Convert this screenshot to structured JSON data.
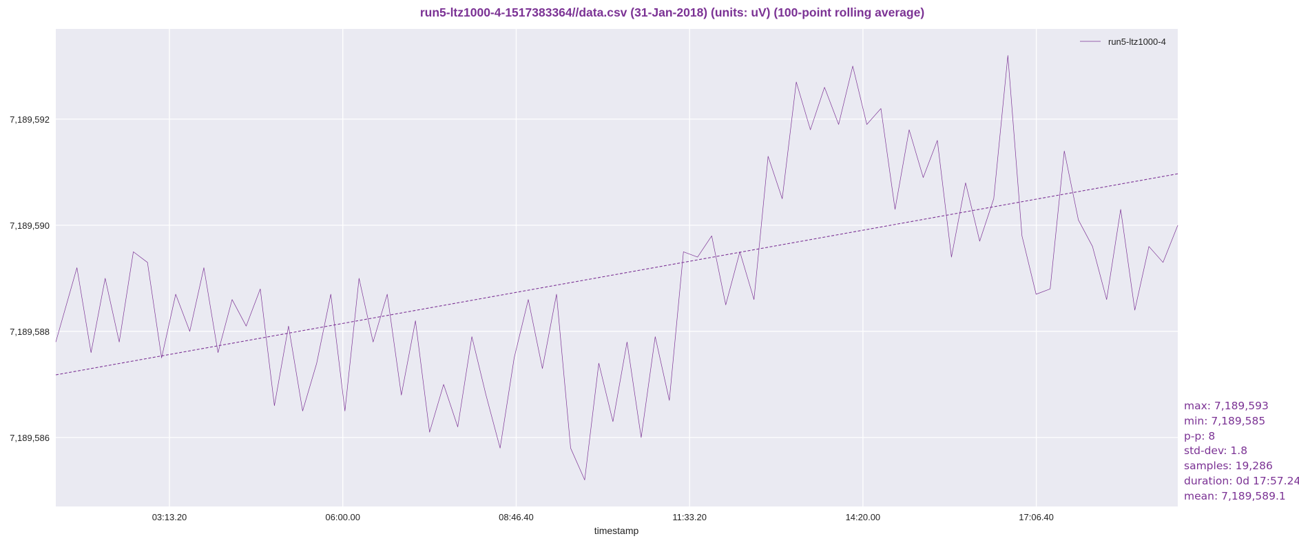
{
  "chart_data": {
    "type": "line",
    "title": "run5-ltz1000-4-1517383364//data.csv (31-Jan-2018) (units: uV) (100-point rolling average)",
    "xlabel": "timestamp",
    "ylabel": "",
    "x_tick_labels": [
      "03:13.20",
      "06:00.00",
      "08:46.40",
      "11:33.20",
      "14:20.00",
      "17:06.40"
    ],
    "x_tick_seconds": [
      11600,
      21600,
      31600,
      41600,
      51600,
      61600
    ],
    "xlim_seconds": [
      5045,
      69760
    ],
    "y_ticks": [
      7189586,
      7189588,
      7189590,
      7189592
    ],
    "ylim": [
      7189584.7,
      7189593.7
    ],
    "grid": true,
    "legend": {
      "placement": "top-right",
      "entries": [
        "run5-ltz1000-4"
      ]
    },
    "colors": {
      "series": "#7b3294",
      "trend": "#7b3294",
      "background": "#eaeaf2",
      "grid": "#ffffff",
      "title": "#7b3294"
    },
    "series": [
      {
        "name": "run5-ltz1000-4",
        "x_seconds": [
          5045,
          6265,
          7078,
          7892,
          8705,
          9519,
          10333,
          11146,
          11960,
          12773,
          13587,
          14400,
          15214,
          16027,
          16841,
          17655,
          18468,
          19282,
          20095,
          20909,
          21722,
          22536,
          23349,
          24163,
          24977,
          25790,
          26604,
          27417,
          28231,
          29044,
          29858,
          30672,
          31485,
          32299,
          33112,
          33926,
          34739,
          35553,
          36366,
          37180,
          37994,
          38807,
          39621,
          40434,
          41248,
          42061,
          42875,
          43689,
          44502,
          45316,
          46129,
          46943,
          47756,
          48570,
          49383,
          50197,
          51011,
          51824,
          52638,
          53451,
          54265,
          55078,
          55892,
          56705,
          57519,
          58333,
          59146,
          59960,
          60773,
          61587,
          62400,
          63214,
          64027,
          64841,
          65655,
          66468,
          67282,
          68095,
          68909,
          69760
        ],
        "values": [
          7189587.8,
          7189589.2,
          7189587.6,
          7189589.0,
          7189587.8,
          7189589.5,
          7189589.3,
          7189587.5,
          7189588.7,
          7189588.0,
          7189589.2,
          7189587.6,
          7189588.6,
          7189588.1,
          7189588.8,
          7189586.6,
          7189588.1,
          7189586.5,
          7189587.4,
          7189588.7,
          7189586.5,
          7189589.0,
          7189587.8,
          7189588.7,
          7189586.8,
          7189588.2,
          7189586.1,
          7189587.0,
          7189586.2,
          7189587.9,
          7189586.8,
          7189585.8,
          7189587.5,
          7189588.6,
          7189587.3,
          7189588.7,
          7189585.8,
          7189585.2,
          7189587.4,
          7189586.3,
          7189587.8,
          7189586.0,
          7189587.9,
          7189586.7,
          7189589.5,
          7189589.4,
          7189589.8,
          7189588.5,
          7189589.5,
          7189588.6,
          7189591.3,
          7189590.5,
          7189592.7,
          7189591.8,
          7189592.6,
          7189591.9,
          7189593.0,
          7189591.9,
          7189592.2,
          7189590.3,
          7189591.8,
          7189590.9,
          7189591.6,
          7189589.4,
          7189590.8,
          7189589.7,
          7189590.5,
          7189593.2,
          7189589.8,
          7189588.7,
          7189588.8,
          7189591.4,
          7189590.1,
          7189589.6,
          7189588.6,
          7189590.3,
          7189588.4,
          7189589.6,
          7189589.3,
          7189590.0
        ]
      },
      {
        "name": "",
        "style": "dashed-trend",
        "x_seconds": [
          5045,
          69760
        ],
        "values": [
          7189587.18,
          7189590.97
        ]
      }
    ]
  },
  "stats": {
    "max": "max: 7,189,593",
    "min": "min: 7,189,585",
    "pp": "p-p: 8",
    "std": "std-dev: 1.8",
    "samples": "samples: 19,286",
    "duration": "duration: 0d 17:57.24",
    "mean": "mean: 7,189,589.1"
  }
}
